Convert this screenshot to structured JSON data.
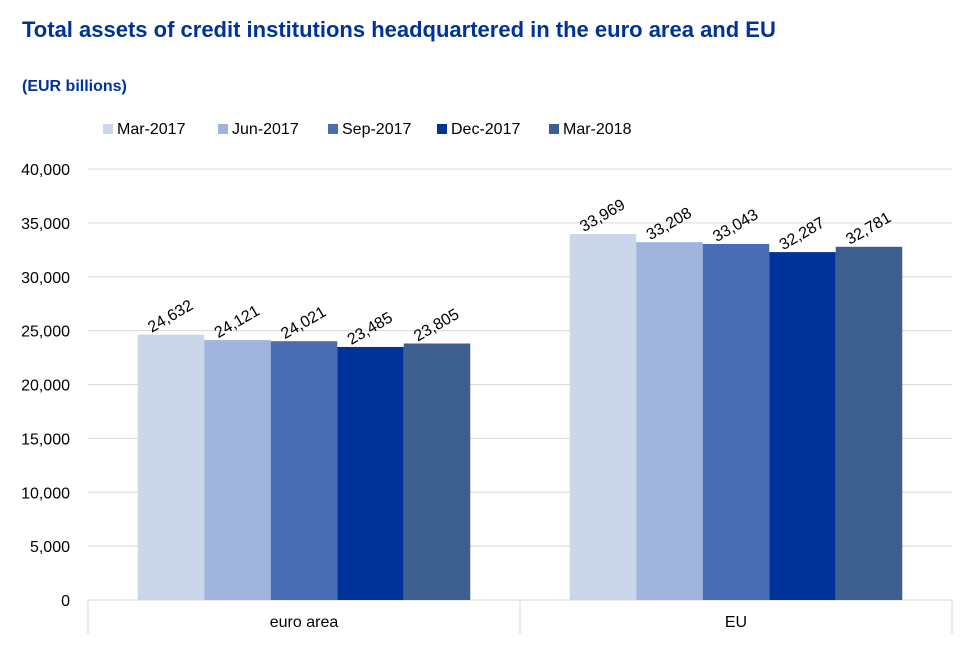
{
  "chart_data": {
    "type": "bar",
    "title": "Total assets of credit institutions headquartered in the euro area and EU",
    "subtitle": "(EUR billions)",
    "categories": [
      "euro area",
      "EU"
    ],
    "series": [
      {
        "name": "Mar-2017",
        "color": "#ccd6ea",
        "values": [
          24632,
          33969
        ],
        "labels": [
          "24,632",
          "33,969"
        ]
      },
      {
        "name": "Jun-2017",
        "color": "#a0b3da",
        "values": [
          24121,
          33208
        ],
        "labels": [
          "24,121",
          "33,208"
        ]
      },
      {
        "name": "Sep-2017",
        "color": "#4a6cb5",
        "values": [
          24021,
          33043
        ],
        "labels": [
          "24,021",
          "33,043"
        ]
      },
      {
        "name": "Dec-2017",
        "color": "#003399",
        "values": [
          23485,
          32287
        ],
        "labels": [
          "23,485",
          "32,287"
        ]
      },
      {
        "name": "Mar-2018",
        "color": "#3d5f8f",
        "values": [
          23805,
          32781
        ],
        "labels": [
          "23,805",
          "32,781"
        ]
      }
    ],
    "ylim": [
      0,
      40000
    ],
    "yticks": [
      0,
      5000,
      10000,
      15000,
      20000,
      25000,
      30000,
      35000,
      40000
    ],
    "ytick_labels": [
      "0",
      "5,000",
      "10,000",
      "15,000",
      "20,000",
      "25,000",
      "30,000",
      "35,000",
      "40,000"
    ],
    "xlabel": "",
    "ylabel": "",
    "legend_position": "top",
    "grid": true
  }
}
